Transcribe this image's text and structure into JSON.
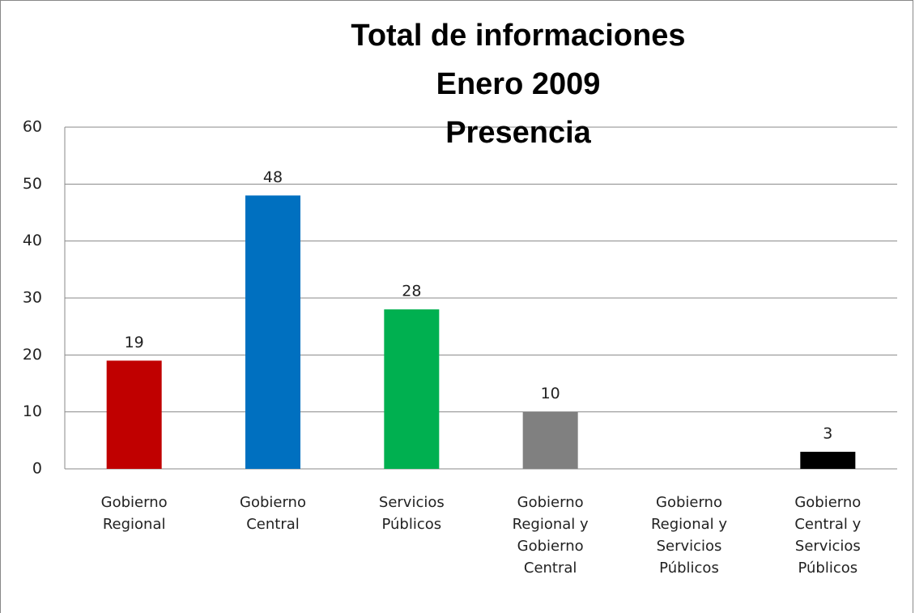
{
  "chart_data": {
    "type": "bar",
    "title": [
      "Total de informaciones",
      "Enero 2009",
      "Presencia"
    ],
    "categories": [
      "Gobierno Regional",
      "Gobierno Central",
      "Servicios Públicos",
      "Gobierno Regional y Gobierno Central",
      "Gobierno Regional y Servicios Públicos",
      "Gobierno Central y Servicios Públicos"
    ],
    "values": [
      19,
      48,
      28,
      10,
      null,
      3
    ],
    "colors": [
      "#c00000",
      "#0070c0",
      "#00b050",
      "#808080",
      null,
      "#000000"
    ],
    "ylim": [
      0,
      60
    ],
    "yticks": [
      0,
      10,
      20,
      30,
      40,
      50,
      60
    ],
    "grid": true
  }
}
